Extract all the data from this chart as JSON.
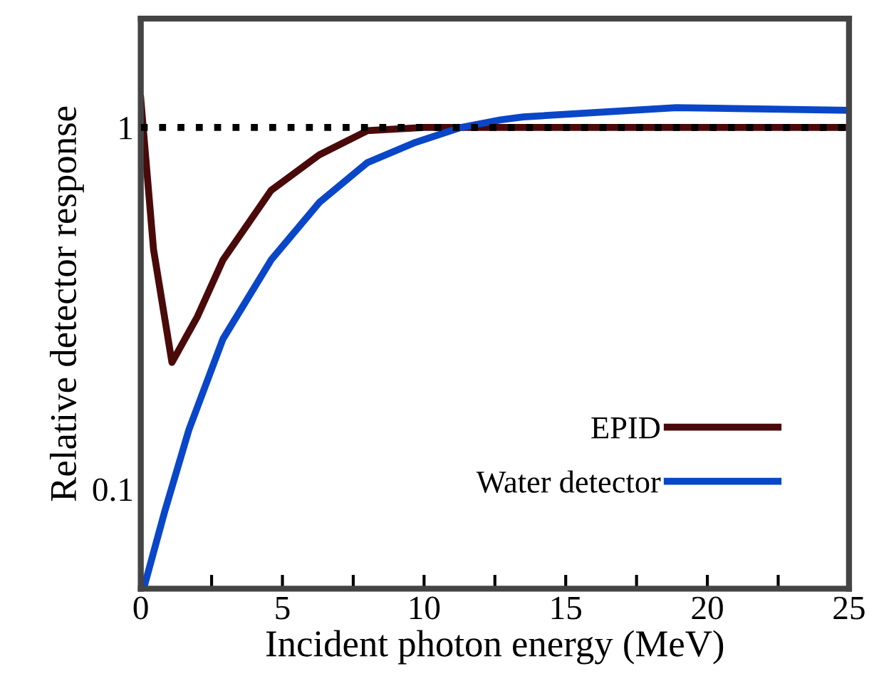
{
  "chart_data": {
    "type": "line",
    "xlabel": "Incident photon energy (MeV)",
    "ylabel": "Relative detector response",
    "log": "y",
    "xlim": [
      0,
      25
    ],
    "ylim": [
      0.053,
      2.0
    ],
    "xticks": [
      0,
      {
        "value": 2.5,
        "label": null
      },
      5,
      {
        "value": 7.5,
        "label": null
      },
      10,
      {
        "value": 12.5,
        "label": null
      },
      15,
      {
        "value": 17.5,
        "label": null
      },
      20,
      {
        "value": 22.5,
        "label": null
      },
      25
    ],
    "yticks": [
      0.1,
      1
    ],
    "grid": false,
    "legend": "right",
    "line_style": "solid",
    "marker": "none",
    "ref_lines": [
      {
        "axis": "y",
        "value": 1,
        "color": "#000000",
        "line_style": "dotted"
      }
    ],
    "series": [
      {
        "name": "EPID",
        "color": "#4a0a0a",
        "x": [
          0,
          0.45,
          1.1,
          2.0,
          2.9,
          4.6,
          6.3,
          8.0,
          10,
          15,
          20,
          25
        ],
        "values": [
          1.2,
          0.46,
          0.224,
          0.3,
          0.43,
          0.67,
          0.84,
          0.98,
          1.0,
          1.0,
          1.0,
          1.0
        ]
      },
      {
        "name": "Water detector",
        "color": "#0a46c8",
        "x": [
          0.1,
          0.85,
          1.7,
          2.9,
          4.6,
          6.3,
          8.0,
          9.7,
          11.3,
          12.7,
          13.5,
          18.9,
          25
        ],
        "values": [
          0.053,
          0.087,
          0.146,
          0.26,
          0.43,
          0.62,
          0.8,
          0.91,
          1.0,
          1.05,
          1.07,
          1.135,
          1.115
        ]
      }
    ]
  }
}
